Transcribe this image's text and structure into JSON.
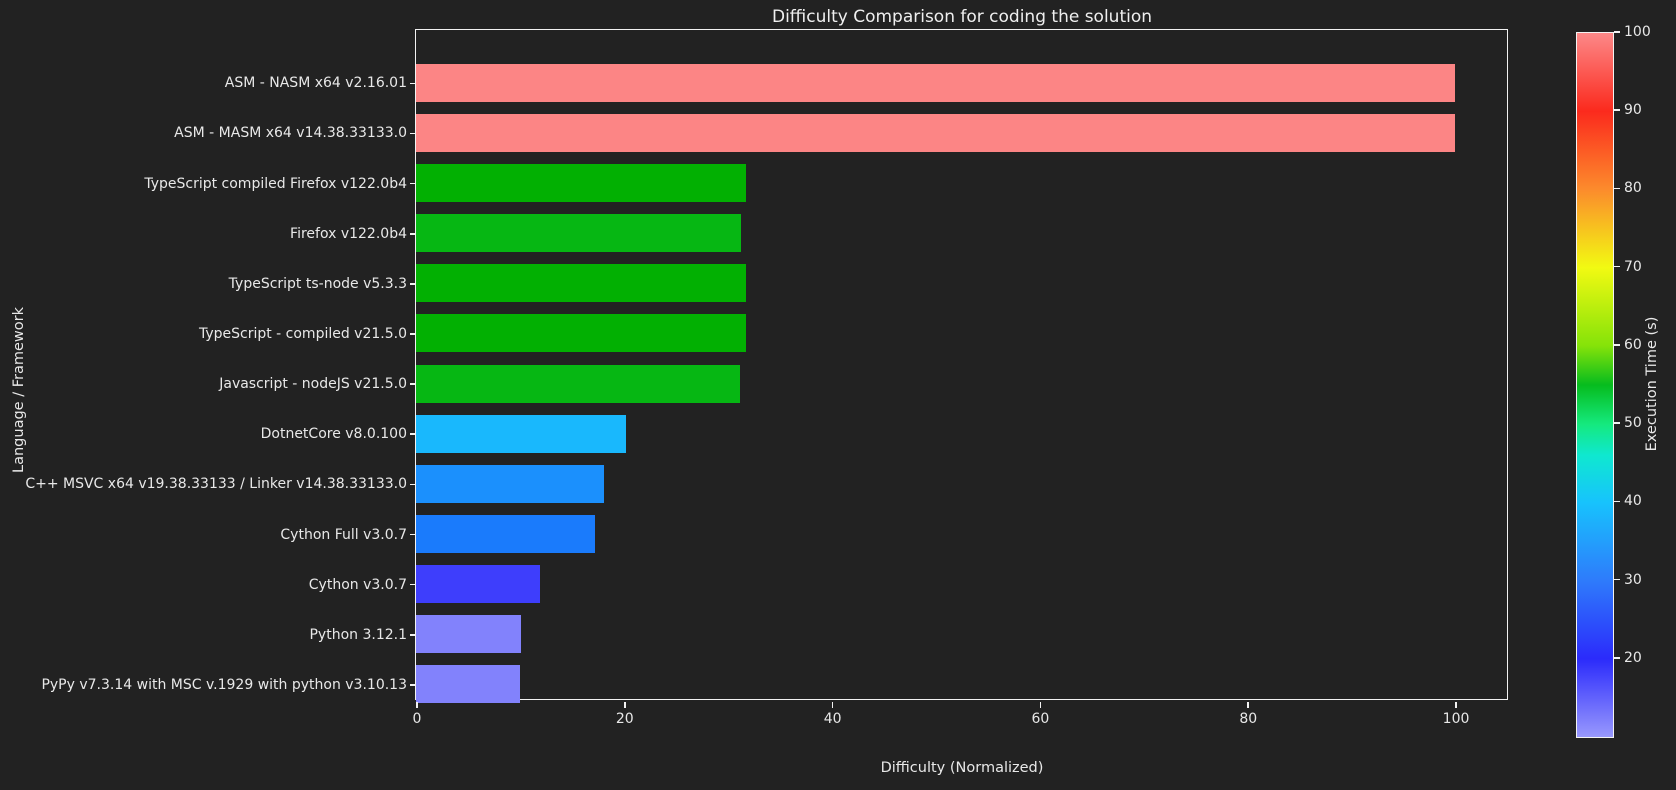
{
  "figure": {
    "background_color": "#222222",
    "text_color": "#e8e8e8",
    "spine_color": "#f2f2f2"
  },
  "chart_data": {
    "type": "bar",
    "orientation": "horizontal",
    "title": "Difficulty Comparison for coding the solution",
    "xlabel": "Difficulty (Normalized)",
    "ylabel": "Language / Framework",
    "xlim": [
      0,
      105
    ],
    "xticks": [
      0,
      20,
      40,
      60,
      80,
      100
    ],
    "grid": false,
    "legend": "none",
    "categories": [
      "ASM - NASM x64 v2.16.01",
      "ASM - MASM x64 v14.38.33133.0",
      "TypeScript compiled Firefox v122.0b4",
      "Firefox v122.0b4",
      "TypeScript ts-node v5.3.3",
      "TypeScript - compiled v21.5.0",
      "Javascript - nodeJS v21.5.0",
      "DotnetCore v8.0.100",
      "C++ MSVC x64 v19.38.33133 / Linker v14.38.33133.0",
      "Cython Full v3.0.7",
      "Cython v3.0.7",
      "Python 3.12.1",
      "PyPy v7.3.14 with MSC v.1929 with python v3.10.13"
    ],
    "values": [
      100,
      100,
      31.7,
      31.2,
      31.7,
      31.7,
      31.1,
      20.2,
      18.1,
      17.2,
      11.9,
      10.1,
      10.0
    ],
    "bar_colors": [
      "#fc8585",
      "#fc8585",
      "#02b002",
      "#06b713",
      "#02b002",
      "#02b002",
      "#06b713",
      "#19b8fd",
      "#1b90fd",
      "#1a7bfc",
      "#3e3efc",
      "#8282fc",
      "#8282fc"
    ],
    "colorbar": {
      "label": "Execution Time (s)",
      "min": 10,
      "max": 100,
      "ticks": [
        20,
        30,
        40,
        50,
        60,
        70,
        80,
        90,
        100
      ],
      "gradient_stops": [
        {
          "value": 10,
          "color": "#9898fd"
        },
        {
          "value": 20,
          "color": "#2b2bfb"
        },
        {
          "value": 30,
          "color": "#2e7bfb"
        },
        {
          "value": 40,
          "color": "#17c3fd"
        },
        {
          "value": 46,
          "color": "#0fe8d0"
        },
        {
          "value": 50,
          "color": "#15e97e"
        },
        {
          "value": 55,
          "color": "#06bc1e"
        },
        {
          "value": 60,
          "color": "#85e309"
        },
        {
          "value": 70,
          "color": "#f2fa12"
        },
        {
          "value": 80,
          "color": "#fc8b2c"
        },
        {
          "value": 90,
          "color": "#fb2a1d"
        },
        {
          "value": 100,
          "color": "#fc8888"
        }
      ]
    }
  }
}
